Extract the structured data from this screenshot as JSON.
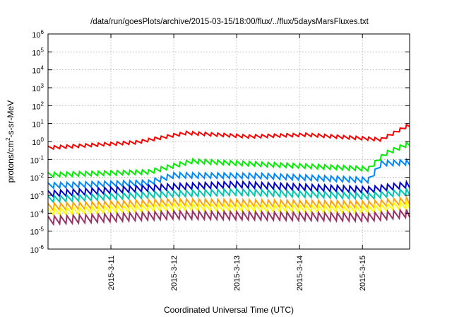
{
  "chart_data": {
    "type": "line",
    "title": "/data/run/goesPlots/archive/2015-03-15/18:00/flux/../flux/5daysMarsFluxes.txt",
    "xlabel": "Coordinated Universal Time (UTC)",
    "ylabel": {
      "prefix": "protons/cm",
      "sup": "2",
      "suffix": "-s-sr-MeV"
    },
    "yscale": "log",
    "ylim": [
      1e-06,
      1000000.0
    ],
    "xlim_days": [
      0,
      5.75
    ],
    "x_tick_labels": [
      "2015-3-11",
      "2015-3-12",
      "2015-3-13",
      "2015-3-14",
      "2015-3-15"
    ],
    "y_tick_exponents": [
      6,
      5,
      4,
      3,
      2,
      1,
      0,
      -1,
      -2,
      -3,
      -4,
      -5,
      -6
    ],
    "y_tick_base": "10",
    "grid": true,
    "series": [
      {
        "color": "#ff0000",
        "baseline": [
          [
            0,
            0.45
          ],
          [
            1.4,
            0.9
          ],
          [
            2.2,
            3.0
          ],
          [
            3.2,
            1.9
          ],
          [
            4.1,
            2.4
          ],
          [
            5.3,
            1.3
          ],
          [
            5.75,
            8.5
          ]
        ],
        "amp_decades": 0.18,
        "period_days": 0.1
      },
      {
        "color": "#00ee00",
        "baseline": [
          [
            0,
            0.014
          ],
          [
            1.6,
            0.02
          ],
          [
            2.3,
            0.08
          ],
          [
            3.6,
            0.05
          ],
          [
            5.1,
            0.03
          ],
          [
            5.35,
            0.2
          ],
          [
            5.75,
            0.8
          ]
        ],
        "amp_decades": 0.25,
        "period_days": 0.1
      },
      {
        "color": "#0088ff",
        "baseline": [
          [
            0,
            0.0035
          ],
          [
            1.6,
            0.005
          ],
          [
            2.0,
            0.013
          ],
          [
            3.4,
            0.012
          ],
          [
            5.1,
            0.007
          ],
          [
            5.3,
            0.06
          ],
          [
            5.75,
            0.07
          ]
        ],
        "amp_decades": 0.3,
        "period_days": 0.1
      },
      {
        "color": "#0000cc",
        "baseline": [
          [
            0,
            0.0012
          ],
          [
            2.0,
            0.003
          ],
          [
            3.0,
            0.004
          ],
          [
            5.1,
            0.002
          ],
          [
            5.75,
            0.004
          ]
        ],
        "amp_decades": 0.35,
        "period_days": 0.1
      },
      {
        "color": "#00c8b0",
        "baseline": [
          [
            0,
            0.0006
          ],
          [
            2.0,
            0.0012
          ],
          [
            3.0,
            0.0015
          ],
          [
            5.1,
            0.0009
          ],
          [
            5.75,
            0.0016
          ]
        ],
        "amp_decades": 0.35,
        "period_days": 0.1
      },
      {
        "color": "#ffa000",
        "baseline": [
          [
            0,
            0.00022
          ],
          [
            2.0,
            0.0004
          ],
          [
            5.1,
            0.0003
          ],
          [
            5.75,
            0.0005
          ]
        ],
        "amp_decades": 0.4,
        "period_days": 0.1
      },
      {
        "color": "#ffff00",
        "baseline": [
          [
            0,
            0.00012
          ],
          [
            2.0,
            0.00022
          ],
          [
            5.1,
            0.00016
          ],
          [
            5.75,
            0.0003
          ]
        ],
        "amp_decades": 0.4,
        "period_days": 0.1
      },
      {
        "color": "#993366",
        "baseline": [
          [
            0,
            4e-05
          ],
          [
            2.0,
            8e-05
          ],
          [
            5.1,
            6e-05
          ],
          [
            5.75,
            0.0001
          ]
        ],
        "amp_decades": 0.45,
        "period_days": 0.1
      }
    ]
  }
}
